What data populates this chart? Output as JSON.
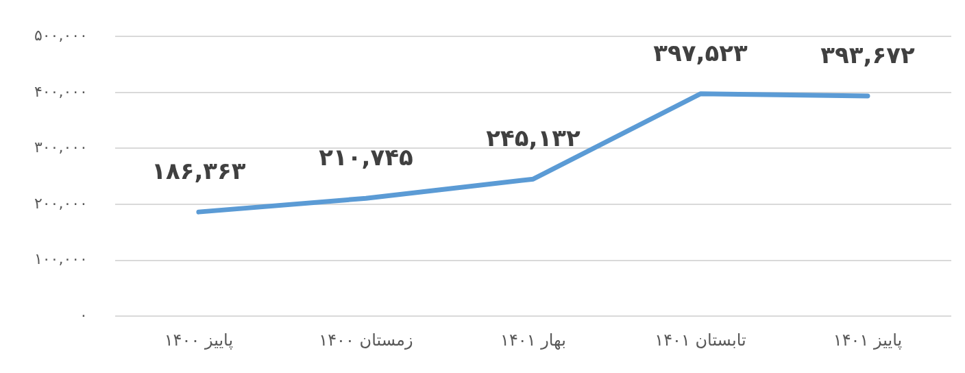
{
  "chart_data": {
    "type": "line",
    "categories": [
      "پاییز ۱۴۰۰",
      "زمستان ۱۴۰۰",
      "بهار ۱۴۰۱",
      "تابستان ۱۴۰۱",
      "پاییز ۱۴۰۱"
    ],
    "series": [
      {
        "color": "#5b9bd5",
        "values": [
          186363,
          210745,
          245132,
          397523,
          393672
        ],
        "value_labels": [
          "۱۸۶,۳۶۳",
          "۲۱۰,۷۴۵",
          "۲۴۵,۱۳۲",
          "۳۹۷,۵۲۳",
          "۳۹۳,۶۷۲"
        ]
      }
    ],
    "ylim": [
      0,
      500000
    ],
    "yticks": [
      {
        "value": 0,
        "label": "۰"
      },
      {
        "value": 100000,
        "label": "۱۰۰,۰۰۰"
      },
      {
        "value": 200000,
        "label": "۲۰۰,۰۰۰"
      },
      {
        "value": 300000,
        "label": "۳۰۰,۰۰۰"
      },
      {
        "value": 400000,
        "label": "۴۰۰,۰۰۰"
      },
      {
        "value": 500000,
        "label": "۵۰۰,۰۰۰"
      }
    ],
    "grid": "y",
    "legend": false,
    "marker": "none",
    "line_style": "solid"
  }
}
